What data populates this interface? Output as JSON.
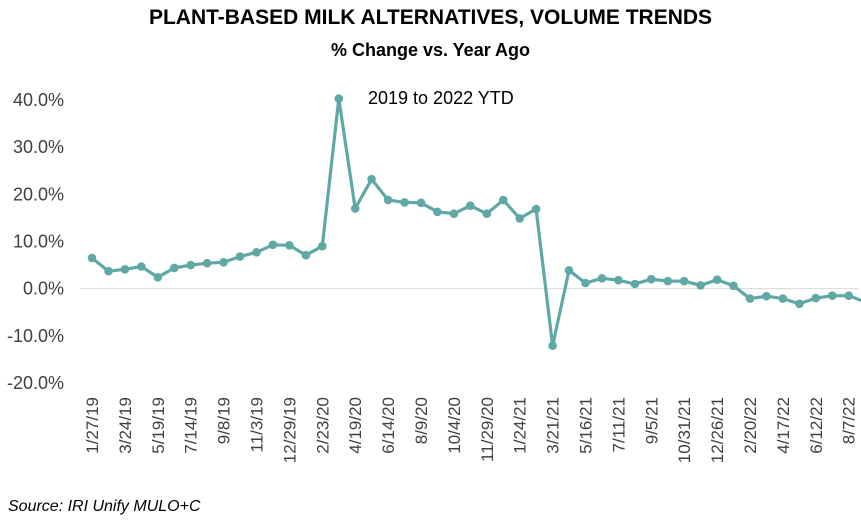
{
  "chart_data": {
    "type": "line",
    "title": "PLANT-BASED MILK ALTERNATIVES, VOLUME TRENDS",
    "subtitle": "% Change vs. Year Ago",
    "annotation": "2019 to 2022 YTD",
    "source": "Source: IRI Unify MULO+C",
    "y_unit": "percent",
    "ylim": [
      -20,
      40
    ],
    "yticks": [
      40,
      30,
      20,
      10,
      0,
      -10,
      -20
    ],
    "ytick_labels": [
      "40.0%",
      "30.0%",
      "20.0%",
      "10.0%",
      "0.0%",
      "-10.0%",
      "-20.0%"
    ],
    "x_tick_labels": [
      "1/27/19",
      "3/24/19",
      "5/19/19",
      "7/14/19",
      "9/8/19",
      "11/3/19",
      "12/29/19",
      "2/23/20",
      "4/19/20",
      "6/14/20",
      "8/9/20",
      "10/4/20",
      "11/29/20",
      "1/24/21",
      "3/21/21",
      "5/16/21",
      "7/11/21",
      "9/5/21",
      "10/31/21",
      "12/26/21",
      "2/20/22",
      "4/17/22",
      "6/12/22",
      "8/7/22"
    ],
    "grid": "zero-line only",
    "series": [
      {
        "color": "#5FA8A6",
        "values": [
          6.5,
          3.7,
          4.1,
          4.7,
          2.4,
          4.4,
          5.0,
          5.4,
          5.6,
          6.8,
          7.7,
          9.3,
          9.2,
          7.1,
          9.0,
          40.3,
          17.0,
          23.2,
          18.8,
          18.3,
          18.2,
          16.3,
          15.9,
          17.6,
          15.9,
          18.8,
          14.9,
          16.9,
          -12.1,
          3.9,
          1.2,
          2.2,
          1.8,
          1.0,
          2.0,
          1.6,
          1.6,
          0.7,
          1.9,
          0.6,
          -2.1,
          -1.6,
          -2.1,
          -3.2,
          -2.0,
          -1.5,
          -1.5,
          -2.8
        ]
      }
    ]
  }
}
